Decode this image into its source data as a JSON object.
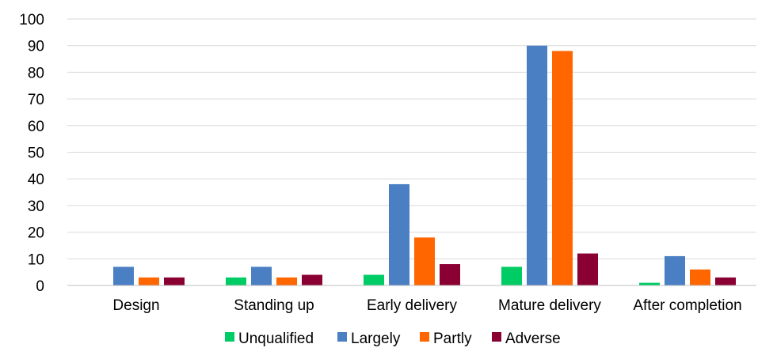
{
  "chart_data": {
    "type": "bar",
    "categories": [
      "Design",
      "Standing up",
      "Early delivery",
      "Mature delivery",
      "After completion"
    ],
    "series": [
      {
        "name": "Unqualified",
        "color": "#00CC66",
        "values": [
          0,
          3,
          4,
          7,
          1
        ]
      },
      {
        "name": "Largely",
        "color": "#4A7FC4",
        "values": [
          7,
          7,
          38,
          90,
          11
        ]
      },
      {
        "name": "Partly",
        "color": "#FF6600",
        "values": [
          3,
          3,
          18,
          88,
          6
        ]
      },
      {
        "name": "Adverse",
        "color": "#8B0033",
        "values": [
          3,
          4,
          8,
          12,
          3
        ]
      }
    ],
    "ylim": [
      0,
      100
    ],
    "yticks": [
      0,
      10,
      20,
      30,
      40,
      50,
      60,
      70,
      80,
      90,
      100
    ],
    "grid": true,
    "legend_position": "bottom"
  }
}
